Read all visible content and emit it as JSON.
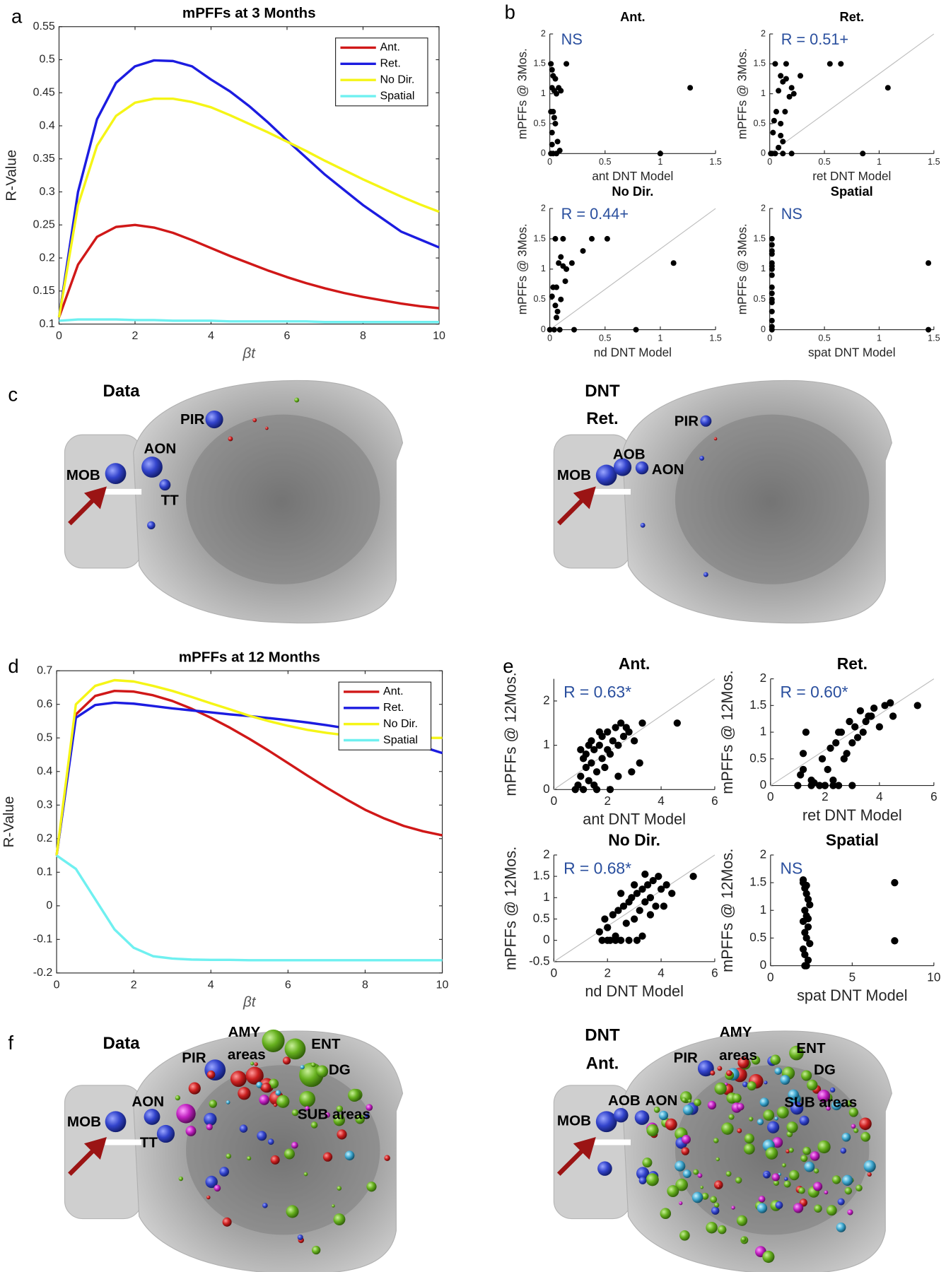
{
  "panel_labels": [
    "a",
    "b",
    "c",
    "d",
    "e",
    "f"
  ],
  "chart_data": [
    {
      "type": "line",
      "title": "mPFFs at 3 Months",
      "xlabel": "βt",
      "ylabel": "R-Value",
      "x": [
        0,
        0.5,
        1,
        1.5,
        2,
        2.5,
        3,
        3.5,
        4,
        4.5,
        5,
        5.5,
        6,
        6.5,
        7,
        7.5,
        8,
        8.5,
        9,
        9.5,
        10
      ],
      "xlim": [
        0,
        10
      ],
      "xticks": [
        0,
        2,
        4,
        6,
        8,
        10
      ],
      "ylim": [
        0.1,
        0.55
      ],
      "yticks": [
        0.1,
        0.15,
        0.2,
        0.25,
        0.3,
        0.35,
        0.4,
        0.45,
        0.5,
        0.55
      ],
      "legend_loc": "upper right",
      "grid": false,
      "series": [
        {
          "name": "Ant.",
          "color": "#d01818",
          "values": [
            0.11,
            0.19,
            0.232,
            0.247,
            0.25,
            0.246,
            0.238,
            0.227,
            0.215,
            0.203,
            0.192,
            0.181,
            0.171,
            0.162,
            0.154,
            0.147,
            0.141,
            0.136,
            0.131,
            0.127,
            0.124
          ]
        },
        {
          "name": "Ret.",
          "color": "#1c1ce0",
          "values": [
            0.11,
            0.3,
            0.41,
            0.465,
            0.49,
            0.499,
            0.498,
            0.49,
            0.47,
            0.452,
            0.43,
            0.405,
            0.378,
            0.352,
            0.326,
            0.303,
            0.28,
            0.26,
            0.24,
            0.228,
            0.216
          ]
        },
        {
          "name": "No Dir.",
          "color": "#f5f516",
          "values": [
            0.11,
            0.28,
            0.37,
            0.415,
            0.435,
            0.441,
            0.441,
            0.436,
            0.428,
            0.416,
            0.403,
            0.39,
            0.376,
            0.362,
            0.347,
            0.333,
            0.319,
            0.306,
            0.293,
            0.281,
            0.27
          ]
        },
        {
          "name": "Spatial",
          "color": "#6ff0f0",
          "values": [
            0.105,
            0.107,
            0.107,
            0.107,
            0.106,
            0.106,
            0.105,
            0.105,
            0.105,
            0.104,
            0.104,
            0.104,
            0.104,
            0.104,
            0.103,
            0.103,
            0.103,
            0.103,
            0.103,
            0.103,
            0.103
          ]
        }
      ]
    },
    {
      "type": "scatter",
      "title": "Ant.",
      "annotation": "NS",
      "xlabel": "ant DNT Model",
      "ylabel": "mPFFs @ 3Mos.",
      "xlim": [
        0,
        1.5
      ],
      "xticks": [
        0,
        0.5,
        1,
        1.5
      ],
      "ylim": [
        0,
        2
      ],
      "yticks": [
        0,
        0.5,
        1,
        1.5,
        2
      ],
      "diagonal_line": false,
      "color": "#000000",
      "annotation_color": "#2a4f9e",
      "x": [
        0.01,
        0.02,
        0.03,
        0.05,
        0.02,
        0.04,
        0.06,
        0.01,
        0.03,
        0.08,
        0.1,
        0.05,
        0.02,
        0.07,
        0.15,
        0.03,
        0.01,
        0.06,
        0.09,
        1.27,
        1.0,
        0.04,
        0.02
      ],
      "values": [
        1.5,
        1.4,
        1.3,
        1.25,
        1.1,
        1.05,
        1.0,
        0.7,
        0.7,
        1.1,
        1.05,
        0.5,
        0.35,
        0.2,
        1.5,
        0,
        0,
        0,
        0.05,
        1.1,
        0,
        0.6,
        0.15
      ]
    },
    {
      "type": "scatter",
      "title": "Ret.",
      "annotation": "R = 0.51+",
      "xlabel": "ret DNT Model",
      "ylabel": "mPFFs @ 3Mos.",
      "xlim": [
        0,
        1.5
      ],
      "xticks": [
        0,
        0.5,
        1,
        1.5
      ],
      "ylim": [
        0,
        2
      ],
      "yticks": [
        0,
        0.5,
        1,
        1.5,
        2
      ],
      "diagonal_line": true,
      "color": "#000000",
      "annotation_color": "#2a4f9e",
      "x": [
        0.05,
        0.1,
        0.12,
        0.15,
        0.2,
        0.08,
        0.06,
        0.14,
        0.1,
        0.28,
        0.22,
        0.18,
        0.04,
        0.03,
        0.02,
        0.1,
        0.12,
        0.55,
        0.65,
        1.08,
        0.85,
        0.01,
        0.05,
        0.12,
        0.2,
        0.08,
        0.15
      ],
      "values": [
        1.5,
        1.3,
        1.2,
        1.5,
        1.1,
        1.05,
        0.7,
        0.7,
        0.5,
        1.3,
        1.0,
        0.95,
        0.55,
        0.35,
        0,
        0.3,
        0.2,
        1.5,
        1.5,
        1.1,
        0,
        0,
        0,
        0,
        0,
        0.1,
        1.25
      ]
    },
    {
      "type": "scatter",
      "title": "No Dir.",
      "annotation": "R = 0.44+",
      "xlabel": "nd DNT Model",
      "ylabel": "mPFFs @ 3Mos.",
      "xlim": [
        0,
        1.5
      ],
      "xticks": [
        0,
        0.5,
        1,
        1.5
      ],
      "ylim": [
        0,
        2
      ],
      "yticks": [
        0,
        0.5,
        1,
        1.5,
        2
      ],
      "diagonal_line": true,
      "color": "#000000",
      "annotation_color": "#2a4f9e",
      "x": [
        0.05,
        0.1,
        0.08,
        0.12,
        0.15,
        0.06,
        0.03,
        0.02,
        0.05,
        0.1,
        0.14,
        0.2,
        0.3,
        0.38,
        0.52,
        1.12,
        0.78,
        0.22,
        0,
        0.04,
        0.09,
        0.12,
        0.07,
        0.06
      ],
      "values": [
        1.5,
        1.2,
        1.1,
        1.05,
        1.0,
        0.7,
        0.7,
        0.55,
        0.4,
        0.5,
        0.8,
        1.1,
        1.3,
        1.5,
        1.5,
        1.1,
        0,
        0,
        0,
        0,
        0,
        1.5,
        0.3,
        0.2
      ]
    },
    {
      "type": "scatter",
      "title": "Spatial",
      "annotation": "NS",
      "xlabel": "spat DNT Model",
      "ylabel": "mPFFs @ 3Mos.",
      "xlim": [
        0,
        1.5
      ],
      "xticks": [
        0,
        0.5,
        1,
        1.5
      ],
      "ylim": [
        0,
        2
      ],
      "yticks": [
        0,
        0.5,
        1,
        1.5,
        2
      ],
      "diagonal_line": false,
      "color": "#000000",
      "annotation_color": "#2a4f9e",
      "x": [
        0.02,
        0.02,
        0.02,
        0.02,
        0.02,
        0.02,
        0.02,
        0.02,
        0.02,
        0.02,
        0.02,
        0.02,
        0.02,
        0.02,
        0.02,
        0.02,
        1.45,
        1.45
      ],
      "values": [
        1.5,
        1.4,
        1.3,
        1.25,
        1.1,
        1.05,
        1.0,
        0.7,
        0.6,
        0.5,
        0.45,
        0.3,
        0.15,
        0,
        0.05,
        0.9,
        1.1,
        0
      ]
    },
    {
      "type": "line",
      "title": "mPFFs at 12 Months",
      "xlabel": "βt",
      "ylabel": "R-Value",
      "x": [
        0,
        0.5,
        1,
        1.5,
        2,
        2.5,
        3,
        3.5,
        4,
        4.5,
        5,
        5.5,
        6,
        6.5,
        7,
        7.5,
        8,
        8.5,
        9,
        9.5,
        10
      ],
      "xlim": [
        0,
        10
      ],
      "xticks": [
        0,
        2,
        4,
        6,
        8,
        10
      ],
      "ylim": [
        -0.2,
        0.7
      ],
      "yticks": [
        -0.2,
        -0.1,
        0,
        0.1,
        0.2,
        0.3,
        0.4,
        0.5,
        0.6,
        0.7
      ],
      "legend_loc": "upper right",
      "grid": false,
      "series": [
        {
          "name": "Ant.",
          "color": "#d01818",
          "values": [
            0.15,
            0.57,
            0.625,
            0.64,
            0.638,
            0.627,
            0.61,
            0.587,
            0.56,
            0.53,
            0.497,
            0.462,
            0.425,
            0.388,
            0.352,
            0.318,
            0.286,
            0.26,
            0.238,
            0.222,
            0.21
          ]
        },
        {
          "name": "Ret.",
          "color": "#1c1ce0",
          "values": [
            0.15,
            0.56,
            0.598,
            0.605,
            0.602,
            0.595,
            0.588,
            0.582,
            0.576,
            0.57,
            0.565,
            0.559,
            0.553,
            0.546,
            0.538,
            0.529,
            0.518,
            0.505,
            0.49,
            0.473,
            0.455
          ]
        },
        {
          "name": "No Dir.",
          "color": "#f5f516",
          "values": [
            0.15,
            0.6,
            0.655,
            0.672,
            0.668,
            0.655,
            0.64,
            0.622,
            0.603,
            0.585,
            0.566,
            0.55,
            0.536,
            0.524,
            0.515,
            0.508,
            0.504,
            0.501,
            0.5,
            0.5,
            0.5
          ]
        },
        {
          "name": "Spatial",
          "color": "#6ff0f0",
          "values": [
            0.15,
            0.11,
            0.02,
            -0.07,
            -0.125,
            -0.15,
            -0.157,
            -0.16,
            -0.161,
            -0.161,
            -0.162,
            -0.162,
            -0.162,
            -0.162,
            -0.162,
            -0.162,
            -0.162,
            -0.162,
            -0.162,
            -0.162,
            -0.162
          ]
        }
      ]
    },
    {
      "type": "scatter",
      "title": "Ant.",
      "annotation": "R = 0.63*",
      "xlabel": "ant DNT Model",
      "ylabel": "mPFFs @ 12Mos.",
      "xlim": [
        0,
        6
      ],
      "xticks": [
        0,
        2,
        4,
        6
      ],
      "ylim": [
        0,
        2.5
      ],
      "yticks": [
        0,
        1,
        2
      ],
      "diagonal_line": true,
      "color": "#000000",
      "annotation_color": "#2a4f9e",
      "x": [
        0.9,
        1.0,
        1.1,
        1.2,
        1.2,
        1.3,
        1.4,
        1.5,
        1.5,
        1.6,
        1.7,
        1.8,
        1.8,
        1.9,
        2.0,
        2.0,
        2.1,
        2.2,
        2.3,
        2.4,
        2.5,
        2.6,
        2.7,
        2.8,
        3.0,
        3.2,
        3.3,
        4.6,
        1.1,
        1.3,
        1.6,
        2.1,
        2.4,
        0.8,
        1.0,
        1.4,
        1.7,
        2.9
      ],
      "values": [
        0.1,
        0.3,
        0,
        0.5,
        0.8,
        0.2,
        0.6,
        0.9,
        0.1,
        0.4,
        1.0,
        0.7,
        1.2,
        0.5,
        0.9,
        1.3,
        0.8,
        1.1,
        1.4,
        1.0,
        1.5,
        1.2,
        1.4,
        1.3,
        1.1,
        0.6,
        1.5,
        1.5,
        0.7,
        1.0,
        0,
        0,
        0.3,
        0,
        0.9,
        1.1,
        1.3,
        0.4
      ]
    },
    {
      "type": "scatter",
      "title": "Ret.",
      "annotation": "R = 0.60*",
      "xlabel": "ret DNT Model",
      "ylabel": "mPFFs @ 12Mos.",
      "xlim": [
        0,
        6
      ],
      "xticks": [
        0,
        2,
        4,
        6
      ],
      "ylim": [
        0,
        2
      ],
      "yticks": [
        0,
        0.5,
        1,
        1.5,
        2
      ],
      "diagonal_line": true,
      "color": "#000000",
      "annotation_color": "#2a4f9e",
      "x": [
        1.0,
        1.2,
        1.3,
        1.5,
        1.6,
        1.8,
        1.9,
        2.0,
        2.1,
        2.2,
        2.3,
        2.4,
        2.5,
        2.6,
        2.7,
        2.8,
        2.9,
        3.0,
        3.1,
        3.2,
        3.3,
        3.4,
        3.5,
        3.6,
        3.8,
        4.0,
        4.2,
        4.5,
        5.4,
        1.2,
        1.5,
        2.0,
        2.5,
        3.0,
        1.1,
        2.3,
        3.7,
        4.4
      ],
      "values": [
        0,
        0.6,
        1.0,
        0,
        0.05,
        0,
        0.5,
        0,
        0.3,
        0.7,
        0.1,
        0.8,
        0,
        1.0,
        0.5,
        0.6,
        1.2,
        0.8,
        1.1,
        0.9,
        1.4,
        1.0,
        1.2,
        1.3,
        1.45,
        1.1,
        1.5,
        1.3,
        1.5,
        0.3,
        0.1,
        0,
        1.0,
        0,
        0.2,
        0,
        1.3,
        1.55
      ]
    },
    {
      "type": "scatter",
      "title": "No Dir.",
      "annotation": "R = 0.68*",
      "xlabel": "nd DNT Model",
      "ylabel": "mPFFs @ 12Mos.",
      "xlim": [
        0,
        6
      ],
      "xticks": [
        0,
        2,
        4,
        6
      ],
      "ylim": [
        -0.5,
        2
      ],
      "yticks": [
        -0.5,
        0,
        0.5,
        1,
        1.5,
        2
      ],
      "diagonal_line": true,
      "color": "#000000",
      "annotation_color": "#2a4f9e",
      "x": [
        1.7,
        1.8,
        1.9,
        2.0,
        2.1,
        2.2,
        2.3,
        2.4,
        2.5,
        2.6,
        2.7,
        2.8,
        2.9,
        3.0,
        3.1,
        3.2,
        3.3,
        3.4,
        3.5,
        3.6,
        3.7,
        3.8,
        3.9,
        4.0,
        4.2,
        4.4,
        5.2,
        2.0,
        2.3,
        2.8,
        3.1,
        3.3,
        3.6,
        4.1,
        2.5,
        3.0,
        3.4
      ],
      "values": [
        0.2,
        0,
        0.5,
        0.3,
        0,
        0.6,
        0.1,
        0.7,
        0,
        0.8,
        0.4,
        0.9,
        1.0,
        0.5,
        1.1,
        0.7,
        1.2,
        0.9,
        1.3,
        1.0,
        1.4,
        0.8,
        1.5,
        1.2,
        1.3,
        1.1,
        1.5,
        0,
        0,
        0,
        0,
        0.1,
        0.6,
        0.8,
        1.1,
        1.3,
        1.55
      ]
    },
    {
      "type": "scatter",
      "title": "Spatial",
      "annotation": "NS",
      "xlabel": "spat DNT Model",
      "ylabel": "mPFFs @ 12Mos.",
      "xlim": [
        0,
        10
      ],
      "xticks": [
        0,
        5,
        10
      ],
      "ylim": [
        0,
        2
      ],
      "yticks": [
        0,
        0.5,
        1,
        1.5,
        2
      ],
      "diagonal_line": false,
      "color": "#000000",
      "annotation_color": "#2a4f9e",
      "x": [
        2.0,
        2.1,
        2.2,
        2.3,
        2.4,
        2.1,
        2.2,
        2.0,
        2.3,
        2.1,
        2.2,
        2.4,
        2.0,
        2.1,
        2.3,
        2.2,
        2.1,
        2.0,
        2.2,
        2.3,
        7.6,
        7.6
      ],
      "values": [
        1.5,
        1.4,
        1.3,
        1.2,
        1.1,
        1.0,
        0.9,
        0.8,
        0.7,
        0.6,
        0.5,
        0.4,
        0.3,
        0.2,
        0.1,
        0,
        0,
        1.55,
        1.45,
        0.85,
        1.5,
        0.45
      ]
    }
  ],
  "brain_images": [
    {
      "heading": [
        "Data"
      ],
      "labels": [
        "PIR",
        "AON",
        "MOB",
        "TT"
      ]
    },
    {
      "heading": [
        "DNT",
        "Ret."
      ],
      "labels": [
        "PIR",
        "AOB",
        "AON",
        "MOB"
      ]
    },
    {
      "heading": [
        "Data"
      ],
      "labels": [
        "AMY",
        "areas",
        "ENT",
        "DG",
        "PIR",
        "AON",
        "MOB",
        "TT",
        "SUB areas"
      ]
    },
    {
      "heading": [
        "DNT",
        "Ant."
      ],
      "labels": [
        "AMY",
        "areas",
        "ENT",
        "DG",
        "PIR",
        "AOB",
        "AON",
        "MOB",
        "SUB areas"
      ]
    }
  ]
}
